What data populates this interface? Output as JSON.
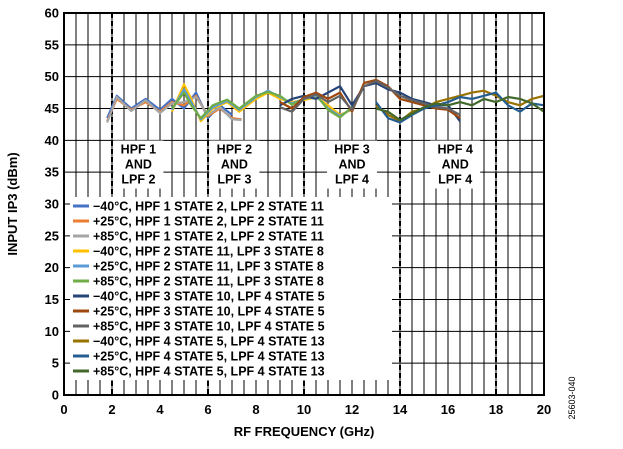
{
  "chart_data": {
    "type": "line",
    "xlabel": "RF FREQUENCY (GHz)",
    "ylabel": "INPUT IP3 (dBm)",
    "xlim": [
      0,
      20
    ],
    "ylim": [
      0,
      60
    ],
    "x_ticks": [
      "0",
      "2",
      "4",
      "6",
      "8",
      "10",
      "12",
      "14",
      "16",
      "18",
      "20"
    ],
    "y_ticks": [
      "0",
      "5",
      "10",
      "15",
      "20",
      "25",
      "30",
      "35",
      "40",
      "45",
      "50",
      "55",
      "60"
    ],
    "grid": true,
    "legend_position": "bottom-left inside plot",
    "annotations": [
      {
        "lines": [
          "HPF 1",
          "AND",
          "LPF 2"
        ],
        "x": 3.1,
        "y_top": 39.5
      },
      {
        "lines": [
          "HPF 2",
          "AND",
          "LPF 3"
        ],
        "x": 7.1,
        "y_top": 39.5
      },
      {
        "lines": [
          "HPF 3",
          "AND",
          "LPF 4"
        ],
        "x": 12.0,
        "y_top": 39.5
      },
      {
        "lines": [
          "HPF 4",
          "AND",
          "LPF 4"
        ],
        "x": 16.3,
        "y_top": 39.5
      }
    ],
    "band_dividers_x": [
      2,
      6,
      10,
      14,
      18
    ],
    "figure_id": "25603-040",
    "series": [
      {
        "name": "−40°C, HPF 1 STATE 2, LPF 2 STATE 11",
        "color": "#4472C4",
        "x": [
          1.8,
          2.2,
          2.8,
          3.4,
          4.0,
          4.5,
          5.0,
          5.5,
          6.0,
          6.5,
          7.0
        ],
        "y": [
          43.5,
          47.0,
          45.0,
          46.5,
          44.8,
          46.5,
          45.0,
          47.5,
          43.5,
          45.5,
          44.0
        ]
      },
      {
        "name": "+25°C, HPF 1 STATE 2, LPF 2 STATE 11",
        "color": "#ED7D31",
        "x": [
          1.8,
          2.2,
          2.8,
          3.4,
          4.0,
          4.5,
          5.0,
          5.5,
          6.0,
          6.5,
          7.0,
          7.4
        ],
        "y": [
          43.0,
          46.5,
          44.8,
          46.0,
          44.5,
          46.0,
          45.5,
          47.0,
          43.8,
          45.0,
          43.5,
          43.3
        ]
      },
      {
        "name": "+85°C, HPF 1 STATE 2, LPF 2 STATE 11",
        "color": "#A5A5A5",
        "x": [
          1.8,
          2.2,
          2.8,
          3.4,
          4.0,
          4.5,
          5.0,
          5.5,
          6.0,
          6.5,
          7.0,
          7.4
        ],
        "y": [
          42.8,
          46.8,
          44.6,
          46.3,
          44.3,
          45.8,
          46.0,
          46.8,
          44.0,
          45.2,
          43.3,
          43.2
        ]
      },
      {
        "name": "−40°C, HPF 2 STATE 11, LPF 3 STATE 8",
        "color": "#FFC000",
        "x": [
          4.5,
          5.0,
          5.3,
          5.7,
          6.2,
          6.8,
          7.3,
          8.0,
          8.5,
          9.0,
          9.5,
          10.0,
          10.5,
          11.0,
          11.5,
          12.0
        ],
        "y": [
          44.5,
          48.8,
          46.5,
          43.0,
          45.0,
          46.0,
          44.5,
          46.5,
          47.5,
          46.5,
          46.0,
          46.3,
          46.8,
          45.5,
          44.0,
          44.8
        ]
      },
      {
        "name": "+25°C, HPF 2 STATE 11, LPF 3 STATE 8",
        "color": "#5B9BD5",
        "x": [
          4.5,
          5.0,
          5.3,
          5.7,
          6.2,
          6.8,
          7.3,
          8.0,
          8.5,
          9.0,
          9.5,
          10.0,
          10.5,
          11.0,
          11.5,
          12.0
        ],
        "y": [
          44.8,
          48.0,
          46.0,
          43.3,
          45.2,
          46.2,
          44.8,
          46.8,
          47.8,
          46.8,
          45.8,
          46.5,
          47.0,
          45.0,
          43.8,
          45.0
        ]
      },
      {
        "name": "+85°C, HPF 2 STATE 11, LPF 3 STATE 8",
        "color": "#70AD47",
        "x": [
          4.5,
          5.0,
          5.3,
          5.7,
          6.2,
          6.8,
          7.3,
          8.0,
          8.5,
          9.0,
          9.5,
          10.0,
          10.5,
          11.0,
          11.5,
          12.0
        ],
        "y": [
          45.0,
          47.5,
          45.5,
          43.5,
          45.5,
          46.4,
          45.0,
          47.0,
          47.6,
          47.0,
          45.6,
          46.6,
          47.2,
          44.8,
          43.6,
          45.2
        ]
      },
      {
        "name": "−40°C, HPF 3 STATE 10, LPF 4 STATE 5",
        "color": "#264478",
        "x": [
          9.0,
          9.5,
          10.0,
          10.5,
          11.0,
          11.5,
          12.0,
          12.5,
          13.0,
          13.5,
          14.0,
          14.5,
          15.0,
          15.5,
          16.0,
          16.5
        ],
        "y": [
          45.5,
          46.5,
          47.0,
          46.5,
          47.5,
          48.5,
          45.5,
          48.5,
          49.0,
          48.0,
          47.5,
          46.5,
          46.0,
          45.5,
          45.5,
          43.0
        ]
      },
      {
        "name": "+25°C, HPF 3 STATE 10, LPF 4 STATE 5",
        "color": "#9E480E",
        "x": [
          9.0,
          9.5,
          10.0,
          10.5,
          11.0,
          11.5,
          12.0,
          12.5,
          13.0,
          13.5,
          14.0,
          14.5,
          15.0,
          15.5,
          16.0,
          16.5
        ],
        "y": [
          46.0,
          45.0,
          46.8,
          47.5,
          46.5,
          47.5,
          44.5,
          49.0,
          49.5,
          48.5,
          46.5,
          46.0,
          45.5,
          45.0,
          44.8,
          43.5
        ]
      },
      {
        "name": "+85°C, HPF 3 STATE 10, LPF 4 STATE 5",
        "color": "#636363",
        "x": [
          9.0,
          9.5,
          10.0,
          10.5,
          11.0,
          11.5,
          12.0,
          12.5,
          13.0,
          13.5,
          14.0,
          14.5,
          15.0,
          15.5,
          16.0,
          16.5
        ],
        "y": [
          45.2,
          44.5,
          46.5,
          47.2,
          46.0,
          47.0,
          44.8,
          48.5,
          49.3,
          48.3,
          47.0,
          46.3,
          45.8,
          45.2,
          45.0,
          44.0
        ]
      },
      {
        "name": "−40°C, HPF 4 STATE 5, LPF 4 STATE 13",
        "color": "#997300",
        "x": [
          13.0,
          13.5,
          14.0,
          14.5,
          15.0,
          15.5,
          16.0,
          16.5,
          17.0,
          17.5,
          18.0,
          18.5,
          19.0,
          19.5,
          20.0
        ],
        "y": [
          45.5,
          44.0,
          43.0,
          44.5,
          45.0,
          46.0,
          46.5,
          47.0,
          47.5,
          47.8,
          47.0,
          46.0,
          45.5,
          46.5,
          47.0
        ]
      },
      {
        "name": "+25°C, HPF 4 STATE 5, LPF 4 STATE 13",
        "color": "#255E91",
        "x": [
          13.0,
          13.5,
          14.0,
          14.5,
          15.0,
          15.5,
          16.0,
          16.5,
          17.0,
          17.5,
          18.0,
          18.5,
          19.0,
          19.5,
          20.0
        ],
        "y": [
          46.0,
          43.5,
          42.8,
          44.0,
          45.0,
          45.5,
          46.0,
          46.8,
          46.5,
          47.0,
          47.5,
          45.5,
          44.5,
          45.8,
          45.5
        ]
      },
      {
        "name": "+85°C, HPF 4 STATE 5, LPF 4 STATE 13",
        "color": "#43682B",
        "x": [
          13.0,
          13.5,
          14.0,
          14.5,
          15.0,
          15.5,
          16.0,
          16.5,
          17.0,
          17.5,
          18.0,
          18.5,
          19.0,
          19.5,
          20.0
        ],
        "y": [
          45.0,
          44.5,
          43.2,
          44.2,
          45.2,
          45.8,
          45.5,
          46.0,
          45.5,
          46.5,
          46.0,
          46.8,
          46.5,
          45.8,
          44.5
        ]
      }
    ]
  }
}
